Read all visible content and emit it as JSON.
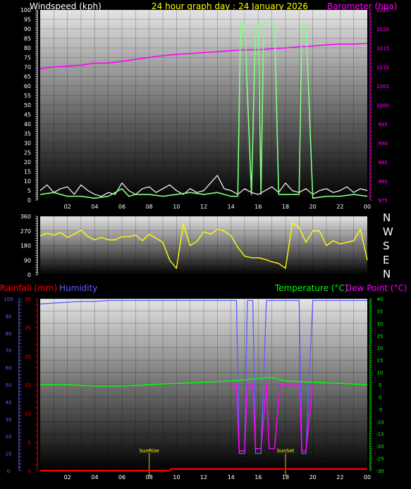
{
  "header": {
    "windspeed_label": "Windspeed (kph)",
    "graph_title": "24 hour graph day : 24 January 2026",
    "barometer_label": "Barometer (hpa)"
  },
  "lower_header": {
    "rainfall_label": "Rainfall (mm)",
    "humidity_label": "Humidity",
    "temperature_label": "Temperature (°C)",
    "dewpoint_label": "Dew Point (°C)"
  },
  "compass": [
    "N",
    "W",
    "S",
    "E",
    "N"
  ],
  "events": {
    "sunrise": "SunRise",
    "sunset": "SunSet"
  },
  "colors": {
    "wind_label": "#ffffff",
    "title": "#ffff00",
    "baro": "#ff00ff",
    "rain": "#ff0000",
    "humidity": "#6060ff",
    "temperature": "#00ff00",
    "dewpoint": "#ff00ff",
    "direction": "#ffff00",
    "wind_line": "#ffffff",
    "gust_line": "#80ff80"
  },
  "chart_data": [
    {
      "type": "line",
      "x_ticks": [
        "02",
        "04",
        "06",
        "08",
        "10",
        "12",
        "14",
        "16",
        "18",
        "20",
        "22",
        "00"
      ],
      "y_left_ticks": [
        0,
        5,
        10,
        15,
        20,
        25,
        30,
        35,
        40,
        45,
        50,
        55,
        60,
        65,
        70,
        75,
        80,
        85,
        90,
        95,
        100
      ],
      "y_right_ticks": [
        975,
        980,
        985,
        990,
        995,
        1000,
        1005,
        1010,
        1015,
        1020,
        1025
      ],
      "ylim_left": [
        0,
        100
      ],
      "ylim_right": [
        975,
        1025
      ],
      "xlim_hours": [
        0,
        24
      ],
      "series": [
        {
          "axis": "right",
          "x": [
            0,
            1,
            2,
            3,
            4,
            5,
            6,
            7,
            8,
            9,
            10,
            11,
            12,
            13,
            14,
            15,
            16,
            17,
            18,
            19,
            20,
            21,
            22,
            23,
            24
          ],
          "values": [
            1009.5,
            1010,
            1010.2,
            1010.5,
            1011,
            1011,
            1011.5,
            1012,
            1012.5,
            1013,
            1013.3,
            1013.5,
            1013.8,
            1014,
            1014.3,
            1014.5,
            1014.5,
            1014.8,
            1015,
            1015.3,
            1015.5,
            1015.8,
            1016,
            1016,
            1016.2
          ]
        },
        {
          "axis": "left",
          "x": [
            0,
            0.5,
            1,
            1.5,
            2,
            2.5,
            3,
            3.5,
            4,
            4.5,
            5,
            5.5,
            6,
            6.5,
            7,
            7.5,
            8,
            8.5,
            9,
            9.5,
            10,
            10.5,
            11,
            11.5,
            12,
            12.5,
            13,
            13.5,
            14,
            14.5,
            15,
            15.5,
            16,
            16.5,
            17,
            17.5,
            18,
            18.5,
            19,
            19.5,
            20,
            20.5,
            21,
            21.5,
            22,
            22.5,
            23,
            23.5,
            24
          ],
          "values": [
            5,
            8,
            4,
            6,
            7,
            3,
            8,
            5,
            3,
            2,
            4,
            3,
            9,
            5,
            3,
            6,
            7,
            4,
            6,
            8,
            5,
            3,
            6,
            4,
            5,
            9,
            13,
            6,
            5,
            3,
            6,
            4,
            3,
            5,
            7,
            4,
            9,
            5,
            4,
            6,
            3,
            5,
            6,
            4,
            5,
            7,
            4,
            6,
            5
          ]
        },
        {
          "axis": "left",
          "x": [
            0,
            1,
            2,
            3,
            4,
            5,
            6,
            6.5,
            7,
            8,
            9,
            10,
            11,
            12,
            13,
            14,
            14.5,
            14.7,
            15,
            15.5,
            15.8,
            16,
            16.2,
            16.4,
            16.6,
            17.2,
            17.5,
            18,
            19,
            19.2,
            19.5,
            20,
            21,
            22,
            23,
            24
          ],
          "values": [
            3,
            4,
            2,
            2,
            1,
            2,
            6,
            2,
            3,
            3,
            2,
            3,
            4,
            3,
            4,
            2,
            2,
            93,
            93,
            3,
            93,
            93,
            3,
            93,
            93,
            93,
            3,
            3,
            3,
            93,
            93,
            1,
            2,
            2,
            3,
            2
          ]
        }
      ]
    },
    {
      "type": "line",
      "y_ticks": [
        0,
        90,
        180,
        270,
        360
      ],
      "ylim": [
        0,
        360
      ],
      "xlim_hours": [
        0,
        24
      ],
      "series": [
        {
          "x": [
            0,
            0.5,
            1,
            1.5,
            2,
            2.5,
            3,
            3.5,
            4,
            4.5,
            5,
            5.5,
            6,
            6.5,
            7,
            7.5,
            8,
            8.5,
            9,
            9.5,
            10,
            10.5,
            11,
            11.5,
            12,
            12.5,
            13,
            13.5,
            14,
            14.5,
            15,
            15.5,
            16,
            16.5,
            17,
            17.5,
            18,
            18.5,
            19,
            19.5,
            20,
            20.5,
            21,
            21.5,
            22,
            22.5,
            23,
            23.5,
            24
          ],
          "values": [
            240,
            255,
            245,
            260,
            230,
            250,
            275,
            235,
            215,
            230,
            215,
            215,
            235,
            235,
            245,
            210,
            250,
            225,
            200,
            90,
            40,
            310,
            180,
            205,
            265,
            250,
            280,
            270,
            240,
            170,
            115,
            105,
            105,
            95,
            80,
            70,
            40,
            320,
            290,
            200,
            270,
            270,
            180,
            210,
            190,
            200,
            210,
            280,
            90
          ]
        }
      ]
    },
    {
      "type": "line",
      "x_ticks": [
        "02",
        "04",
        "06",
        "08",
        "10",
        "12",
        "14",
        "16",
        "18",
        "20",
        "22",
        "00"
      ],
      "y_left_ticks_humidity": [
        0,
        10,
        20,
        30,
        40,
        50,
        60,
        70,
        80,
        90,
        100
      ],
      "y_left_ticks_rain": [
        0,
        5,
        10,
        15,
        20,
        25,
        30
      ],
      "y_right_ticks": [
        -30,
        -25,
        -20,
        -15,
        -10,
        -5,
        0,
        5,
        10,
        15,
        20,
        25,
        30,
        35,
        40
      ],
      "ylim_humidity": [
        0,
        100
      ],
      "ylim_rain": [
        0,
        30
      ],
      "ylim_right": [
        -30,
        40
      ],
      "xlim_hours": [
        0,
        24
      ],
      "series": [
        {
          "axis": "humidity",
          "x": [
            0,
            1,
            2,
            3,
            4,
            5,
            6,
            7,
            8,
            9,
            10,
            11,
            12,
            13,
            14,
            14.4,
            14.6,
            15,
            15.2,
            15.6,
            15.8,
            16.2,
            16.6,
            16.8,
            17.2,
            17.6,
            18,
            19,
            19.2,
            19.5,
            20,
            21,
            22,
            23,
            24
          ],
          "values": [
            97,
            97.5,
            98,
            98.5,
            98.5,
            99,
            99,
            99,
            99,
            99,
            99,
            99,
            99,
            99,
            99,
            99,
            10,
            10,
            99,
            99,
            10,
            10,
            99,
            99,
            99,
            99,
            99,
            99,
            10,
            10,
            99,
            99,
            99,
            99,
            99
          ]
        },
        {
          "axis": "right",
          "x": [
            0,
            2,
            4,
            6,
            8,
            10,
            12,
            14,
            15,
            16,
            17,
            18,
            20,
            22,
            24
          ],
          "values": [
            5,
            5,
            4.5,
            4.5,
            5,
            5.5,
            6,
            6.5,
            7,
            7.5,
            8,
            6.5,
            6,
            5.5,
            5
          ]
        },
        {
          "axis": "right",
          "x": [
            14,
            14.4,
            14.6,
            15,
            15.2,
            15.6,
            15.8,
            16.2,
            16.6,
            16.8,
            17.2,
            17.6,
            19,
            19.2,
            19.5,
            20
          ],
          "values": [
            5,
            5,
            -22,
            -22,
            5,
            5,
            -21,
            -21,
            5,
            -21,
            -21,
            5,
            5,
            -22,
            -22,
            5
          ]
        },
        {
          "axis": "rain",
          "x": [
            0,
            9.5,
            9.6,
            24
          ],
          "values": [
            0,
            0,
            0.3,
            0.3
          ]
        }
      ],
      "events": [
        {
          "label": "SunRise",
          "hour": 8
        },
        {
          "label": "SunSet",
          "hour": 18
        }
      ]
    }
  ]
}
